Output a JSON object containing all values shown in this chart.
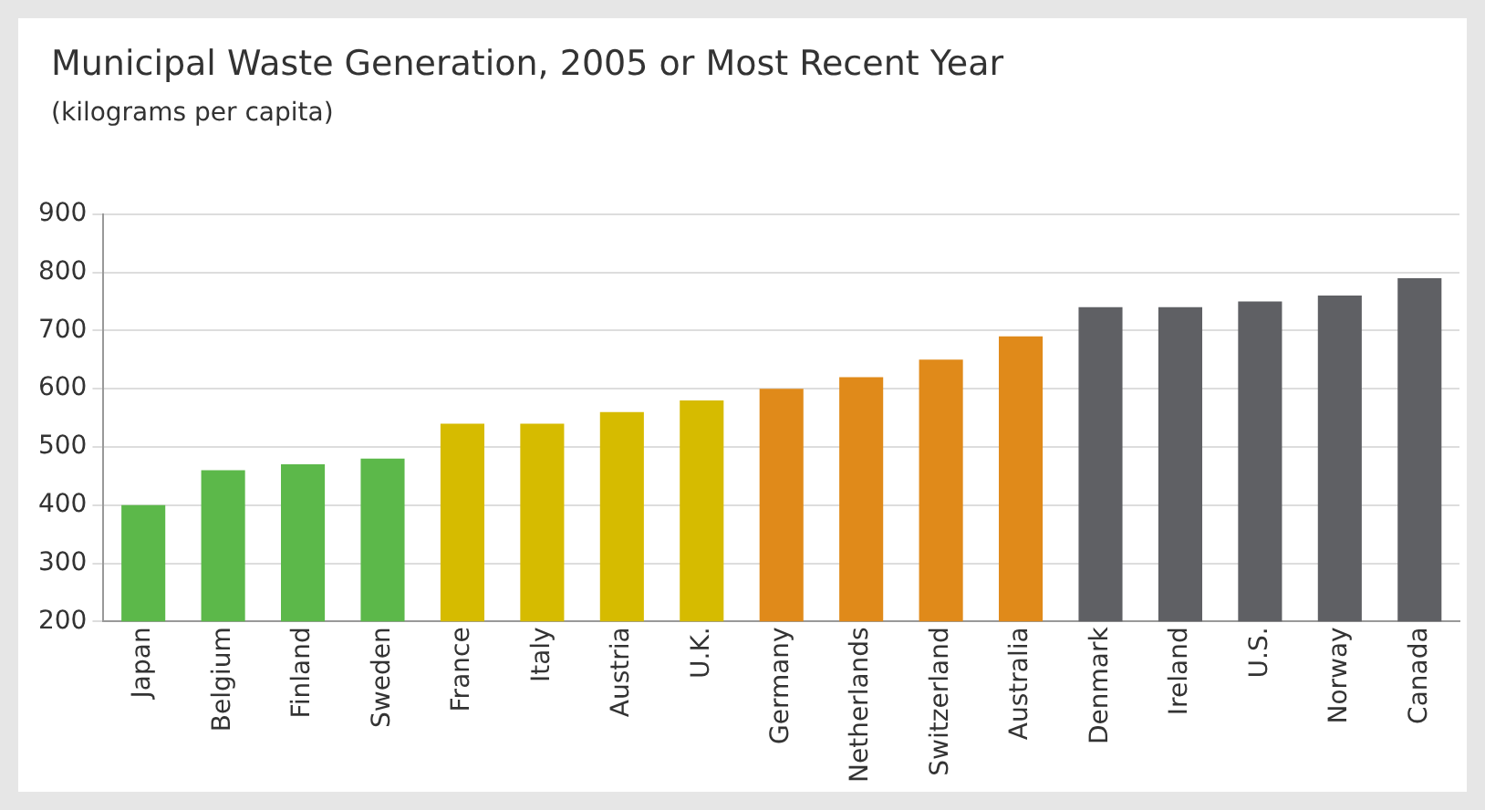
{
  "chart_data": {
    "type": "bar",
    "title": "Municipal Waste Generation, 2005 or Most Recent Year",
    "subtitle": "(kilograms per capita)",
    "categories": [
      "Japan",
      "Belgium",
      "Finland",
      "Sweden",
      "France",
      "Italy",
      "Austria",
      "U.K.",
      "Germany",
      "Netherlands",
      "Switzerland",
      "Australia",
      "Denmark",
      "Ireland",
      "U.S.",
      "Norway",
      "Canada"
    ],
    "values": [
      400,
      460,
      470,
      480,
      540,
      540,
      560,
      580,
      600,
      620,
      650,
      690,
      740,
      740,
      750,
      760,
      790
    ],
    "colors": [
      "#5cb84a",
      "#5cb84a",
      "#5cb84a",
      "#5cb84a",
      "#d6bb00",
      "#d6bb00",
      "#d6bb00",
      "#d6bb00",
      "#e08a1a",
      "#e08a1a",
      "#e08a1a",
      "#e08a1a",
      "#5f6064",
      "#5f6064",
      "#5f6064",
      "#5f6064",
      "#5f6064"
    ],
    "ylim": [
      200,
      900
    ],
    "yticks": [
      200,
      300,
      400,
      500,
      600,
      700,
      800,
      900
    ],
    "grid": "y",
    "legend": false
  }
}
